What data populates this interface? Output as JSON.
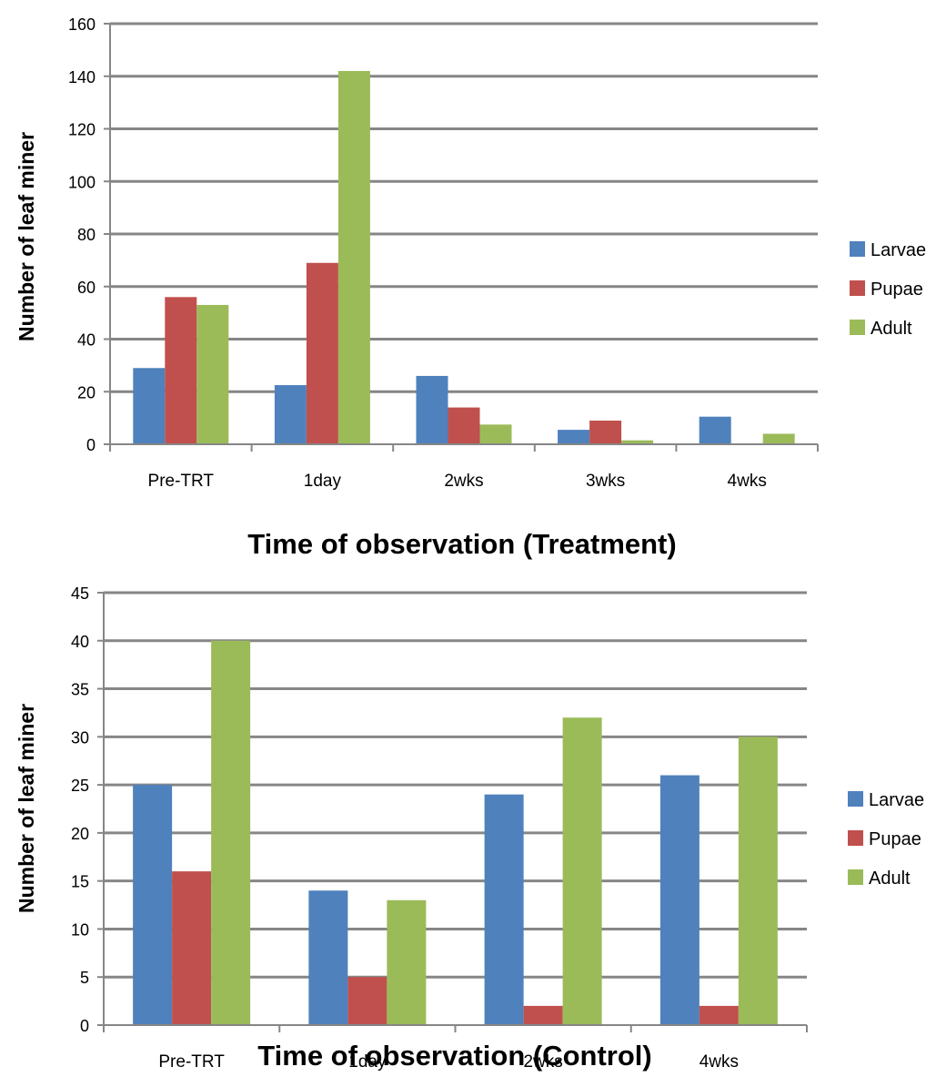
{
  "colors": {
    "larvae": "#4F81BD",
    "pupae": "#C0504D",
    "adult": "#9BBB59",
    "gridline": "#868686",
    "axis": "#868686"
  },
  "chart_data": [
    {
      "type": "bar",
      "title": "",
      "xlabel": "Time of observation (Treatment)",
      "ylabel": "Number of leaf miner",
      "categories": [
        "Pre-TRT",
        "1day",
        "2wks",
        "3wks",
        "4wks"
      ],
      "ylim": [
        0,
        160
      ],
      "yticks": [
        "0",
        "20",
        "40",
        "60",
        "80",
        "100",
        "120",
        "140",
        "160"
      ],
      "grid": true,
      "legend_position": "right",
      "series": [
        {
          "name": "Larvae",
          "values": [
            29,
            22.5,
            26,
            5.5,
            10.5
          ]
        },
        {
          "name": "Pupae",
          "values": [
            56,
            69,
            14,
            9,
            0
          ]
        },
        {
          "name": "Adult",
          "values": [
            53,
            142,
            7.5,
            1.5,
            4
          ]
        }
      ]
    },
    {
      "type": "bar",
      "title": "",
      "xlabel": "Time of observation (Control)",
      "ylabel": "Number of leaf miner",
      "categories": [
        "Pre-TRT",
        "1day",
        "2wks",
        "4wks"
      ],
      "ylim": [
        0,
        45
      ],
      "yticks": [
        "0",
        "5",
        "10",
        "15",
        "20",
        "25",
        "30",
        "35",
        "40",
        "45"
      ],
      "grid": true,
      "legend_position": "right",
      "series": [
        {
          "name": "Larvae",
          "values": [
            25,
            14,
            24,
            26
          ]
        },
        {
          "name": "Pupae",
          "values": [
            16,
            5,
            2,
            2
          ]
        },
        {
          "name": "Adult",
          "values": [
            40,
            13,
            32,
            30
          ]
        }
      ]
    }
  ]
}
